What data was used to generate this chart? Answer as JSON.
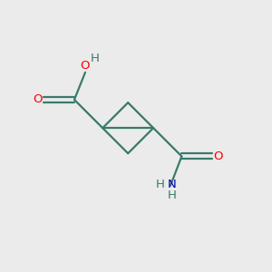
{
  "background_color": "#ebebeb",
  "bond_color": "#3a7a6a",
  "atom_colors": {
    "O": "#ff0000",
    "N": "#0000bb",
    "H": "#3a7a6a"
  },
  "figsize": [
    3.0,
    3.0
  ],
  "dpi": 100,
  "lw": 1.6,
  "fontsize": 9.5
}
